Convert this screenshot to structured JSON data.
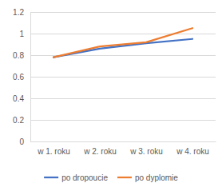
{
  "chart_data": {
    "type": "line",
    "categories": [
      "w 1. roku",
      "w 2. roku",
      "w 3. roku",
      "w 4. roku"
    ],
    "series": [
      {
        "name": "po dropoucie",
        "color": "#4472c4",
        "values": [
          0.78,
          0.86,
          0.91,
          0.95
        ]
      },
      {
        "name": "po dyplomie",
        "color": "#ed7d31",
        "values": [
          0.78,
          0.88,
          0.92,
          1.05
        ]
      }
    ],
    "ylim": [
      0,
      1.2
    ],
    "yticks": [
      0,
      0.2,
      0.4,
      0.6,
      0.8,
      1,
      1.2
    ],
    "grid": true,
    "legend": "bottom"
  }
}
